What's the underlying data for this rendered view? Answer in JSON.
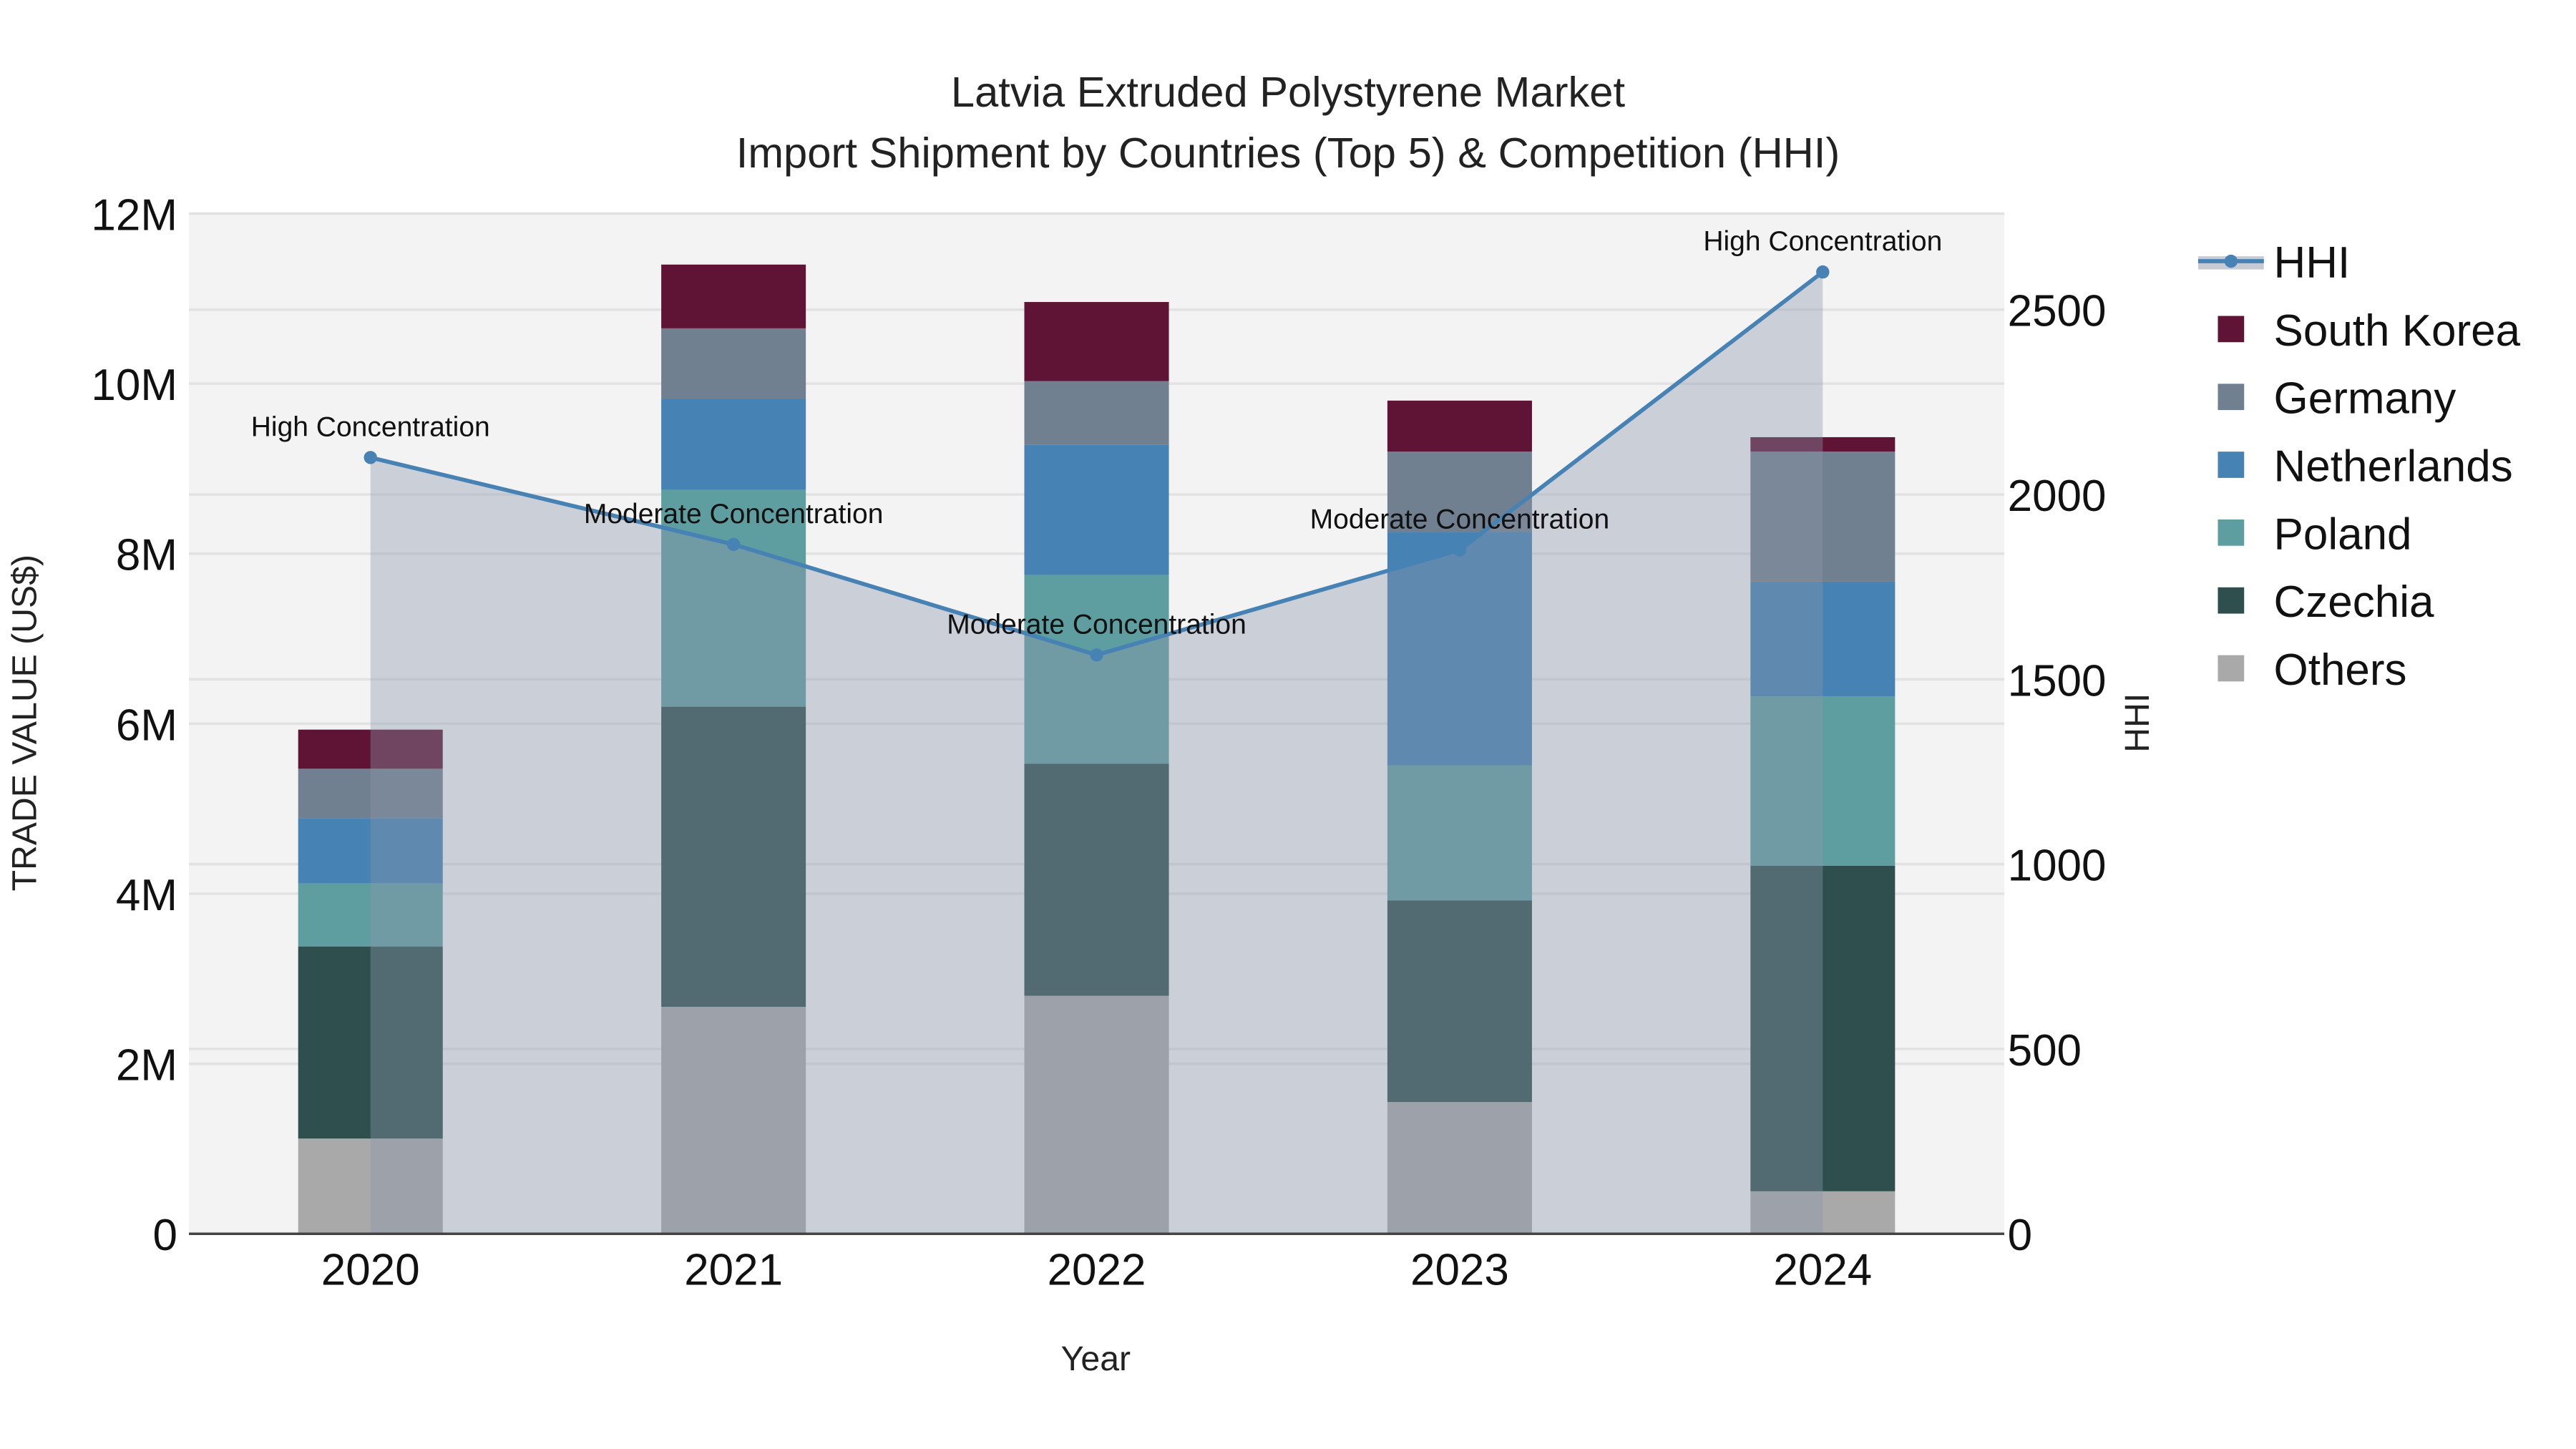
{
  "chart_data": {
    "type": "bar",
    "title_line1": "Latvia Extruded Polystyrene Market",
    "title_line2": "Import Shipment by Countries (Top 5) & Competition (HHI)",
    "xlabel": "Year",
    "ylabel": "TRADE VALUE (US$)",
    "y2label": "HHI",
    "ylim": [
      0,
      12000000
    ],
    "y2lim": [
      0,
      2760
    ],
    "yticks": [
      {
        "v": 0,
        "label": "0"
      },
      {
        "v": 2000000,
        "label": "2M"
      },
      {
        "v": 4000000,
        "label": "4M"
      },
      {
        "v": 6000000,
        "label": "6M"
      },
      {
        "v": 8000000,
        "label": "8M"
      },
      {
        "v": 10000000,
        "label": "10M"
      },
      {
        "v": 12000000,
        "label": "12M"
      }
    ],
    "y2ticks": [
      {
        "v": 0,
        "label": "0"
      },
      {
        "v": 500,
        "label": "500"
      },
      {
        "v": 1000,
        "label": "1000"
      },
      {
        "v": 1500,
        "label": "1500"
      },
      {
        "v": 2000,
        "label": "2000"
      },
      {
        "v": 2500,
        "label": "2500"
      }
    ],
    "categories": [
      "2020",
      "2021",
      "2022",
      "2023",
      "2024"
    ],
    "series": [
      {
        "name": "Others",
        "color": "#A9A9A9",
        "values": [
          1120000,
          2670000,
          2800000,
          1550000,
          500000
        ]
      },
      {
        "name": "Czechia",
        "color": "#2F4F4F",
        "values": [
          2260000,
          3530000,
          2730000,
          2370000,
          3830000
        ]
      },
      {
        "name": "Poland",
        "color": "#5F9EA0",
        "values": [
          740000,
          2550000,
          2220000,
          1590000,
          1990000
        ]
      },
      {
        "name": "Netherlands",
        "color": "#4682B4",
        "values": [
          770000,
          1070000,
          1530000,
          2740000,
          1350000
        ]
      },
      {
        "name": "Germany",
        "color": "#708090",
        "values": [
          580000,
          830000,
          750000,
          950000,
          1530000
        ]
      },
      {
        "name": "South Korea",
        "color": "#5F1436",
        "values": [
          460000,
          750000,
          930000,
          600000,
          170000
        ]
      }
    ],
    "hhi": {
      "name": "HHI",
      "color": "#4682B4",
      "values": [
        2100,
        1865,
        1566,
        1850,
        2602
      ],
      "annotations": [
        "High Concentration",
        "Moderate Concentration",
        "Moderate Concentration",
        "Moderate Concentration",
        "High Concentration"
      ]
    },
    "legend": [
      "HHI",
      "South Korea",
      "Germany",
      "Netherlands",
      "Poland",
      "Czechia",
      "Others"
    ],
    "legend_placement": "right",
    "grid": true
  }
}
